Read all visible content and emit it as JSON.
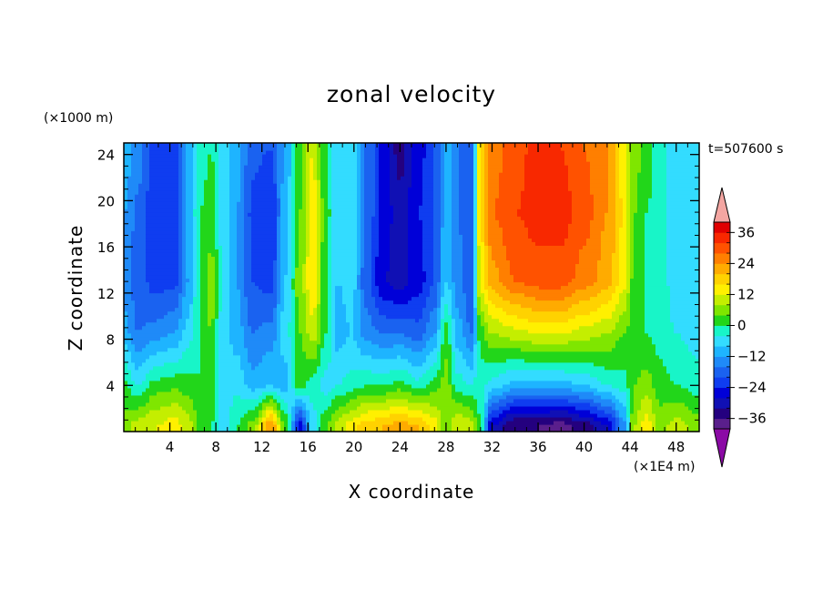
{
  "chart_data": {
    "type": "heatmap",
    "title": "zonal velocity",
    "xlabel": "X coordinate",
    "ylabel": "Z coordinate",
    "x_units": "(×1E4 m)",
    "y_units": "(×1000 m)",
    "time_label": "t=507600 s",
    "xlim": [
      0,
      50
    ],
    "ylim": [
      0,
      25
    ],
    "x_ticks": [
      4,
      8,
      12,
      16,
      20,
      24,
      28,
      32,
      36,
      40,
      44,
      48
    ],
    "y_ticks": [
      4,
      8,
      12,
      16,
      20,
      24
    ],
    "colorbar": {
      "levels": [
        -40,
        -36,
        -32,
        -28,
        -24,
        -20,
        -16,
        -12,
        -8,
        -4,
        0,
        4,
        8,
        12,
        16,
        20,
        24,
        28,
        32,
        36,
        40
      ],
      "colors": [
        "#5a1f8c",
        "#24007f",
        "#1010b4",
        "#0000d8",
        "#0f3df0",
        "#1a62f0",
        "#1f8af8",
        "#1eb4ff",
        "#33dcff",
        "#18f5c8",
        "#22d61a",
        "#7fe600",
        "#c4ee00",
        "#fff000",
        "#ffd200",
        "#ffab00",
        "#ff7f00",
        "#ff5200",
        "#f82800",
        "#e00000"
      ],
      "under_color": "#8b0aa5",
      "over_color": "#f4a6a2",
      "labels": [
        {
          "value": -36,
          "text": "−36"
        },
        {
          "value": -24,
          "text": "−24"
        },
        {
          "value": -12,
          "text": "−12"
        },
        {
          "value": 0,
          "text": "0"
        },
        {
          "value": 12,
          "text": "12"
        },
        {
          "value": 24,
          "text": "24"
        },
        {
          "value": 36,
          "text": "36"
        }
      ]
    },
    "columns": [
      {
        "x": 0.0,
        "p": [
          6,
          1,
          -10,
          -14,
          -12,
          -9
        ]
      },
      {
        "x": 1.2,
        "p": [
          10,
          -4,
          -16,
          -18,
          -17,
          -14
        ]
      },
      {
        "x": 2.8,
        "p": [
          12,
          2,
          -14,
          -22,
          -24,
          -22
        ]
      },
      {
        "x": 4.4,
        "p": [
          14,
          3,
          -12,
          -21,
          -23,
          -22
        ]
      },
      {
        "x": 5.6,
        "p": [
          10,
          2,
          -6,
          -12,
          -10,
          -10
        ]
      },
      {
        "x": 6.6,
        "p": [
          3,
          0,
          0,
          0,
          0,
          -2
        ]
      },
      {
        "x": 7.6,
        "p": [
          0,
          4,
          4,
          6,
          2,
          0
        ]
      },
      {
        "x": 8.6,
        "p": [
          -8,
          -6,
          -6,
          -4,
          -6,
          -6
        ]
      },
      {
        "x": 9.8,
        "p": [
          0,
          -5,
          -10,
          -12,
          -12,
          -10
        ]
      },
      {
        "x": 11.2,
        "p": [
          6,
          -10,
          -16,
          -20,
          -21,
          -19
        ]
      },
      {
        "x": 12.8,
        "p": [
          24,
          -8,
          -14,
          -22,
          -24,
          -20
        ]
      },
      {
        "x": 14.0,
        "p": [
          4,
          -10,
          -6,
          -8,
          -10,
          -12
        ]
      },
      {
        "x": 15.3,
        "p": [
          -26,
          2,
          4,
          6,
          4,
          2
        ]
      },
      {
        "x": 16.4,
        "p": [
          -6,
          -2,
          10,
          16,
          14,
          12
        ]
      },
      {
        "x": 17.6,
        "p": [
          4,
          -6,
          0,
          0,
          2,
          0
        ]
      },
      {
        "x": 18.6,
        "p": [
          10,
          -4,
          -10,
          -8,
          -8,
          -8
        ]
      },
      {
        "x": 19.8,
        "p": [
          14,
          -2,
          -8,
          -6,
          -4,
          -6
        ]
      },
      {
        "x": 21.0,
        "p": [
          18,
          0,
          -14,
          -18,
          -16,
          -16
        ]
      },
      {
        "x": 22.6,
        "p": [
          20,
          0,
          -16,
          -28,
          -26,
          -26
        ]
      },
      {
        "x": 24.0,
        "p": [
          22,
          2,
          -16,
          -30,
          -30,
          -34
        ]
      },
      {
        "x": 25.6,
        "p": [
          20,
          -2,
          -18,
          -26,
          -24,
          -26
        ]
      },
      {
        "x": 27.0,
        "p": [
          14,
          2,
          -12,
          -20,
          -20,
          -20
        ]
      },
      {
        "x": 28.0,
        "p": [
          6,
          6,
          2,
          -8,
          -10,
          -10
        ]
      },
      {
        "x": 29.0,
        "p": [
          12,
          -2,
          -10,
          -14,
          -16,
          -16
        ]
      },
      {
        "x": 30.2,
        "p": [
          10,
          -4,
          -16,
          -20,
          -20,
          -20
        ]
      },
      {
        "x": 31.0,
        "p": [
          0,
          -2,
          2,
          14,
          16,
          16
        ]
      },
      {
        "x": 32.0,
        "p": [
          -28,
          -6,
          8,
          22,
          28,
          26
        ]
      },
      {
        "x": 34.0,
        "p": [
          -36,
          -10,
          10,
          28,
          32,
          30
        ]
      },
      {
        "x": 36.0,
        "p": [
          -36,
          -10,
          12,
          30,
          34,
          34
        ]
      },
      {
        "x": 38.0,
        "p": [
          -38,
          -10,
          12,
          30,
          34,
          32
        ]
      },
      {
        "x": 40.0,
        "p": [
          -34,
          -8,
          10,
          26,
          30,
          28
        ]
      },
      {
        "x": 42.0,
        "p": [
          -28,
          -4,
          8,
          22,
          24,
          24
        ]
      },
      {
        "x": 43.4,
        "p": [
          -14,
          -2,
          4,
          14,
          16,
          14
        ]
      },
      {
        "x": 44.4,
        "p": [
          8,
          4,
          2,
          2,
          4,
          6
        ]
      },
      {
        "x": 45.4,
        "p": [
          14,
          6,
          0,
          0,
          0,
          2
        ]
      },
      {
        "x": 46.6,
        "p": [
          6,
          2,
          -2,
          -2,
          -2,
          -2
        ]
      },
      {
        "x": 48.0,
        "p": [
          10,
          0,
          -4,
          -6,
          -6,
          -6
        ]
      },
      {
        "x": 50.0,
        "p": [
          6,
          -2,
          -6,
          -8,
          -8,
          -8
        ]
      }
    ],
    "z_profile_levels": [
      0.6,
      4.0,
      8.5,
      13.0,
      19.0,
      24.5
    ]
  }
}
